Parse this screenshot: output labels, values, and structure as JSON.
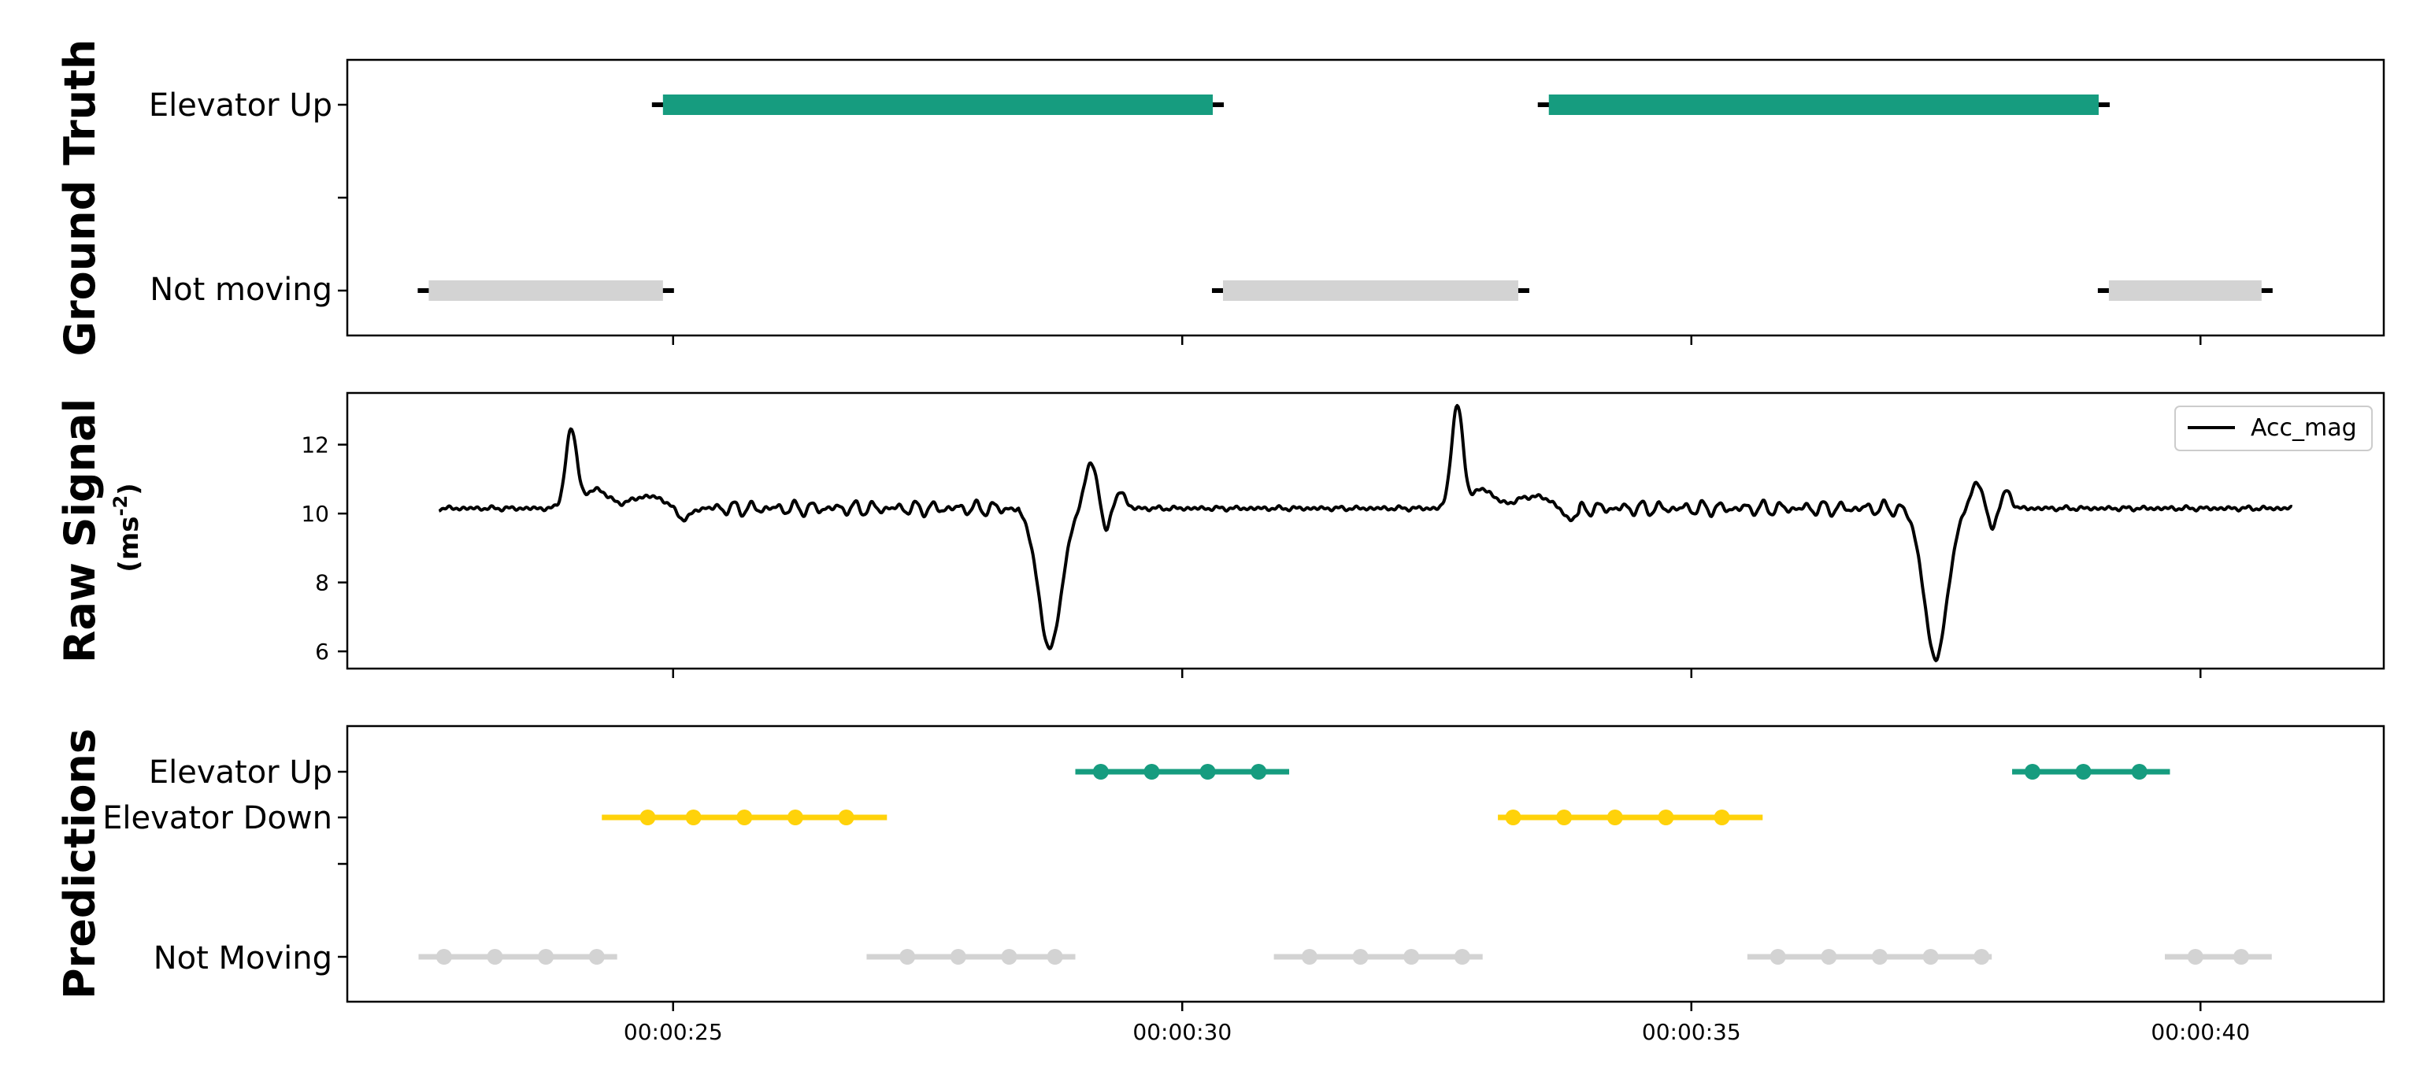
{
  "chart_data": [
    {
      "type": "timeline",
      "ylabel": "Ground Truth",
      "x_range_seconds": [
        21.8,
        41.8
      ],
      "y_categories": [
        "Not moving",
        "Elevator Up"
      ],
      "colors": {
        "Elevator Up": "#169C7F",
        "Not moving": "#D3D3D3"
      },
      "segments": [
        {
          "label": "Not moving",
          "start": 22.6,
          "end": 24.9
        },
        {
          "label": "Elevator Up",
          "start": 24.9,
          "end": 30.3
        },
        {
          "label": "Not moving",
          "start": 30.4,
          "end": 33.3
        },
        {
          "label": "Elevator Up",
          "start": 33.6,
          "end": 39.0
        },
        {
          "label": "Not moving",
          "start": 39.1,
          "end": 40.6
        }
      ]
    },
    {
      "type": "line",
      "ylabel": "Raw Signal",
      "ylabel_unit": "(ms",
      "ylabel_unit_sup": "-2",
      "ylabel_unit_end": ")",
      "ylim": [
        5.5,
        13.5
      ],
      "yticks": [
        6,
        8,
        10,
        12
      ],
      "legend": {
        "position": "top-right",
        "entries": [
          "Acc_mag"
        ]
      },
      "series": [
        {
          "name": "Acc_mag",
          "color": "#000000",
          "baseline": 10.15,
          "events": [
            {
              "t": 24.0,
              "type": "bump_up",
              "peak": 12.4,
              "min": 10.05
            },
            {
              "t": 28.7,
              "type": "dip_down",
              "min": 6.1,
              "rebound": 11.5
            },
            {
              "t": 32.7,
              "type": "bump_up",
              "peak": 13.1,
              "min": 10.05
            },
            {
              "t": 37.4,
              "type": "dip_down",
              "min": 5.8,
              "rebound": 10.9
            }
          ],
          "t_range": [
            22.7,
            40.9
          ]
        }
      ]
    },
    {
      "type": "scatter",
      "ylabel": "Predictions",
      "y_categories": [
        "Not Moving",
        "Elevator Down",
        "Elevator Up"
      ],
      "xticklabels": [
        "00:00:25",
        "00:00:30",
        "00:00:35",
        "00:00:40"
      ],
      "xticks_seconds": [
        25,
        30,
        35,
        40
      ],
      "colors": {
        "Elevator Up": "#169C7F",
        "Elevator Down": "#FFD20A",
        "Not Moving": "#D3D3D3"
      },
      "series": [
        {
          "name": "Elevator Up",
          "segments": [
            {
              "start": 28.95,
              "end": 31.05,
              "points": [
                29.2,
                29.7,
                30.25,
                30.75
              ]
            },
            {
              "start": 38.15,
              "end": 39.7,
              "points": [
                38.35,
                38.85,
                39.4
              ]
            }
          ]
        },
        {
          "name": "Elevator Down",
          "segments": [
            {
              "start": 24.3,
              "end": 27.1,
              "points": [
                24.75,
                25.2,
                25.7,
                26.2,
                26.7
              ]
            },
            {
              "start": 33.1,
              "end": 35.7,
              "points": [
                33.25,
                33.75,
                34.25,
                34.75,
                35.3
              ]
            }
          ]
        },
        {
          "name": "Not Moving",
          "segments": [
            {
              "start": 22.5,
              "end": 24.45,
              "points": [
                22.75,
                23.25,
                23.75,
                24.25
              ]
            },
            {
              "start": 26.9,
              "end": 28.95,
              "points": [
                27.3,
                27.8,
                28.3,
                28.75
              ]
            },
            {
              "start": 30.9,
              "end": 32.95,
              "points": [
                31.25,
                31.75,
                32.25,
                32.75
              ]
            },
            {
              "start": 35.55,
              "end": 37.95,
              "points": [
                35.85,
                36.35,
                36.85,
                37.35,
                37.85
              ]
            },
            {
              "start": 39.65,
              "end": 40.7,
              "points": [
                39.95,
                40.4
              ]
            }
          ]
        }
      ]
    }
  ]
}
